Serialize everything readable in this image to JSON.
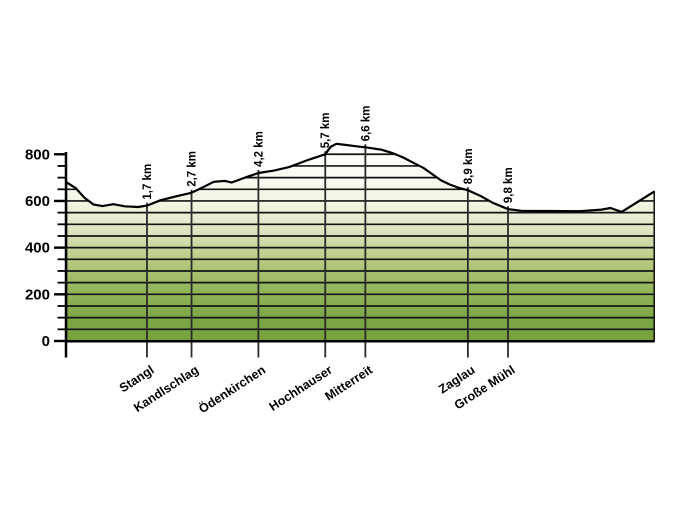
{
  "chart_data": {
    "type": "area",
    "title": "",
    "description": "elevation-profile",
    "unit_x": "km",
    "unit_y": "m",
    "y_axis": {
      "labels": [
        "0",
        "200",
        "400",
        "600",
        "800"
      ],
      "values": [
        0,
        200,
        400,
        600,
        800
      ],
      "minor_step": 50,
      "range": [
        0,
        845
      ]
    },
    "x_range_km": [
      0,
      13.1
    ],
    "markers": [
      {
        "km": 1.7,
        "label": "1,7 km",
        "place": "Stangl",
        "elevation_m": 580
      },
      {
        "km": 2.7,
        "label": "2,7 km",
        "place": "Kandlschlag",
        "elevation_m": 635
      },
      {
        "km": 4.2,
        "label": "4,2 km",
        "place": "Ödenkirchen",
        "elevation_m": 720
      },
      {
        "km": 5.7,
        "label": "5,7 km",
        "place": "Hochhauser",
        "elevation_m": 800
      },
      {
        "km": 6.6,
        "label": "6,6 km",
        "place": "Mitterreit",
        "elevation_m": 830
      },
      {
        "km": 8.9,
        "label": "8,9 km",
        "place": "Zaglau",
        "elevation_m": 646
      },
      {
        "km": 9.8,
        "label": "9,8 km",
        "place": "Große Mühl",
        "elevation_m": 565
      }
    ],
    "profile_km_m": [
      [
        -0.105,
        680
      ],
      [
        0.1,
        655
      ],
      [
        0.3,
        613
      ],
      [
        0.5,
        585
      ],
      [
        0.7,
        578
      ],
      [
        0.95,
        586
      ],
      [
        1.2,
        577
      ],
      [
        1.5,
        574
      ],
      [
        1.7,
        580
      ],
      [
        2.0,
        603
      ],
      [
        2.4,
        622
      ],
      [
        2.7,
        635
      ],
      [
        2.95,
        658
      ],
      [
        3.2,
        682
      ],
      [
        3.45,
        686
      ],
      [
        3.6,
        679
      ],
      [
        3.9,
        700
      ],
      [
        4.2,
        720
      ],
      [
        4.55,
        730
      ],
      [
        4.9,
        746
      ],
      [
        5.35,
        778
      ],
      [
        5.7,
        800
      ],
      [
        5.82,
        832
      ],
      [
        5.95,
        845
      ],
      [
        6.15,
        840
      ],
      [
        6.4,
        834
      ],
      [
        6.6,
        830
      ],
      [
        6.95,
        820
      ],
      [
        7.2,
        806
      ],
      [
        7.45,
        786
      ],
      [
        7.65,
        766
      ],
      [
        7.9,
        742
      ],
      [
        8.1,
        715
      ],
      [
        8.3,
        688
      ],
      [
        8.5,
        670
      ],
      [
        8.7,
        656
      ],
      [
        8.9,
        646
      ],
      [
        9.2,
        620
      ],
      [
        9.45,
        593
      ],
      [
        9.65,
        577
      ],
      [
        9.8,
        565
      ],
      [
        10.1,
        558
      ],
      [
        10.7,
        557
      ],
      [
        11.4,
        556
      ],
      [
        11.9,
        563
      ],
      [
        12.1,
        570
      ],
      [
        12.35,
        553
      ],
      [
        13.08,
        640
      ]
    ],
    "colors": {
      "outline": "#000000",
      "grid": "#141414",
      "axis": "#000000",
      "marker_line": "#2b2b2b",
      "gradient_stops": [
        {
          "t": 0.0,
          "c": "#ffffff"
        },
        {
          "t": 0.2,
          "c": "#f8f9ef"
        },
        {
          "t": 0.31,
          "c": "#f2f3e0"
        },
        {
          "t": 0.44,
          "c": "#dee4c2"
        },
        {
          "t": 0.59,
          "c": "#b8ca81"
        },
        {
          "t": 0.74,
          "c": "#93b55a"
        },
        {
          "t": 0.89,
          "c": "#7ca646"
        },
        {
          "t": 1.0,
          "c": "#76a23c"
        }
      ]
    }
  }
}
